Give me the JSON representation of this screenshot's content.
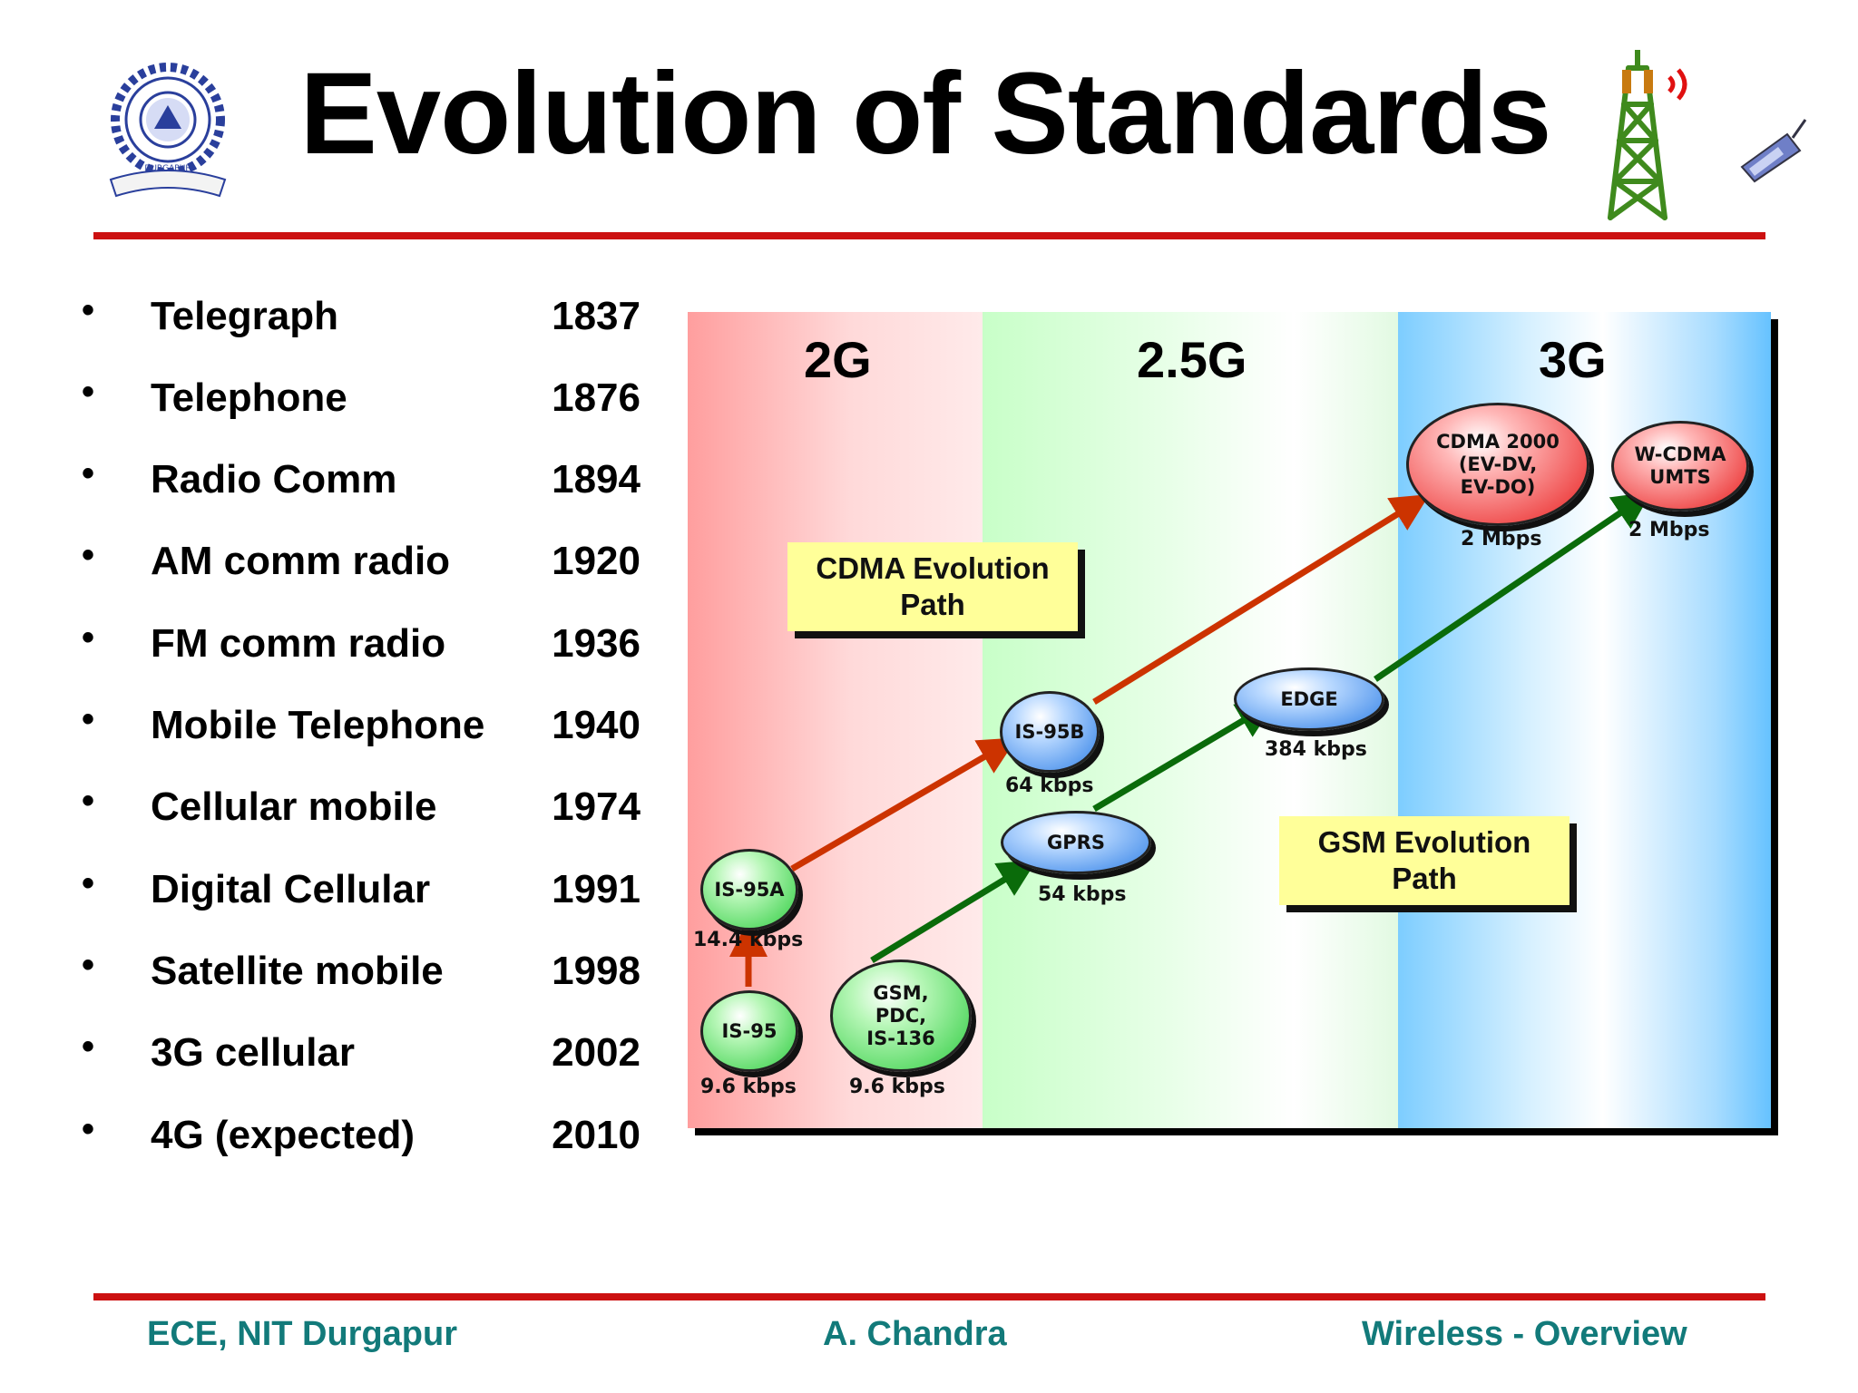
{
  "title": "Evolution of Standards",
  "timeline": [
    {
      "label": "Telegraph",
      "year": "1837"
    },
    {
      "label": "Telephone",
      "year": "1876"
    },
    {
      "label": "Radio Comm",
      "year": "1894"
    },
    {
      "label": "AM comm radio",
      "year": "1920"
    },
    {
      "label": "FM comm radio",
      "year": "1936"
    },
    {
      "label": "Mobile Telephone",
      "year": "1940"
    },
    {
      "label": "Cellular mobile",
      "year": "1974"
    },
    {
      "label": "Digital Cellular",
      "year": "1991"
    },
    {
      "label": "Satellite mobile",
      "year": "1998"
    },
    {
      "label": "3G cellular",
      "year": "2002"
    },
    {
      "label": "4G (expected)",
      "year": "2010"
    }
  ],
  "diagram": {
    "bands": {
      "g2": "2G",
      "g25": "2.5G",
      "g3": "3G"
    },
    "notes": {
      "cdma": [
        "CDMA Evolution",
        "Path"
      ],
      "gsm": [
        "GSM Evolution",
        "Path"
      ]
    },
    "nodes": {
      "is95": {
        "label": [
          "IS-95"
        ],
        "rate": "9.6 kbps"
      },
      "gsm": {
        "label": [
          "GSM,",
          "PDC,",
          "IS-136"
        ],
        "rate": "9.6 kbps"
      },
      "is95a": {
        "label": [
          "IS-95A"
        ],
        "rate": "14.4 kbps"
      },
      "is95b": {
        "label": [
          "IS-95B"
        ],
        "rate": "64 kbps"
      },
      "gprs": {
        "label": [
          "GPRS"
        ],
        "rate": "54 kbps"
      },
      "edge": {
        "label": [
          "EDGE"
        ],
        "rate": "384 kbps"
      },
      "cdma2000": {
        "label": [
          "CDMA 2000",
          "(EV-DV,",
          "EV-DO)"
        ],
        "rate": "2 Mbps"
      },
      "wcdma": {
        "label": [
          "W-CDMA",
          "UMTS"
        ],
        "rate": "2 Mbps"
      }
    },
    "colors": {
      "cdma_arrow": "#cc3300",
      "gsm_arrow": "#0a6b0a"
    }
  },
  "footer": {
    "left": "ECE, NIT Durgapur",
    "center": "A. Chandra",
    "right": "Wireless - Overview"
  },
  "logo": {
    "icon": "institute-seal-icon",
    "text": "DURGAPUR"
  },
  "icons": [
    "radio-tower-icon",
    "mobile-phone-icon"
  ]
}
